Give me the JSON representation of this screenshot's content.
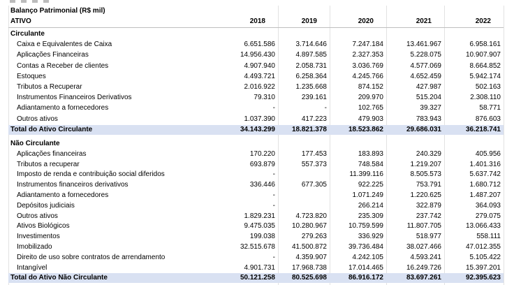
{
  "title": "Balanço Patrimonial (R$ mil)",
  "header": {
    "label": "ATIVO",
    "years": [
      "2018",
      "2019",
      "2020",
      "2021",
      "2022"
    ]
  },
  "sections": [
    {
      "heading": "Circulante",
      "rows": [
        {
          "label": "Caixa e Equivalentes de Caixa",
          "values": [
            "6.651.586",
            "3.714.646",
            "7.247.184",
            "13.461.967",
            "6.958.161"
          ]
        },
        {
          "label": "Aplicações Financeiras",
          "values": [
            "14.956.430",
            "4.897.585",
            "2.327.353",
            "5.228.075",
            "10.907.907"
          ]
        },
        {
          "label": "Contas a Receber de clientes",
          "values": [
            "4.907.940",
            "2.058.731",
            "3.036.769",
            "4.577.069",
            "8.664.852"
          ]
        },
        {
          "label": "Estoques",
          "values": [
            "4.493.721",
            "6.258.364",
            "4.245.766",
            "4.652.459",
            "5.942.174"
          ]
        },
        {
          "label": "Tributos a Recuperar",
          "values": [
            "2.016.922",
            "1.235.668",
            "874.152",
            "427.987",
            "502.163"
          ]
        },
        {
          "label": "Instrumentos Financeiros Derivativos",
          "values": [
            "79.310",
            "239.161",
            "209.970",
            "515.204",
            "2.308.110"
          ]
        },
        {
          "label": "Adiantamento a fornecedores",
          "values": [
            "-",
            "-",
            "102.765",
            "39.327",
            "58.771"
          ]
        },
        {
          "label": "Outros ativos",
          "values": [
            "1.037.390",
            "417.223",
            "479.903",
            "783.943",
            "876.603"
          ]
        }
      ],
      "total": {
        "label": "Total do Ativo Circulante",
        "values": [
          "34.143.299",
          "18.821.378",
          "18.523.862",
          "29.686.031",
          "36.218.741"
        ]
      }
    },
    {
      "heading": "Não Circulante",
      "rows": [
        {
          "label": "Aplicações financeiras",
          "values": [
            "170.220",
            "177.453",
            "183.893",
            "240.329",
            "405.956"
          ]
        },
        {
          "label": "Tributos a recuperar",
          "values": [
            "693.879",
            "557.373",
            "748.584",
            "1.219.207",
            "1.401.316"
          ]
        },
        {
          "label": "Imposto de renda e contribuição social diferidos",
          "values": [
            "-",
            "",
            "11.399.116",
            "8.505.573",
            "5.637.742"
          ]
        },
        {
          "label": "Instrumentos financeiros derivativos",
          "values": [
            "336.446",
            "677.305",
            "922.225",
            "753.791",
            "1.680.712"
          ]
        },
        {
          "label": "Adiantamento a fornecedores",
          "values": [
            "-",
            "",
            "1.071.249",
            "1.220.625",
            "1.487.207"
          ]
        },
        {
          "label": "Depósitos judiciais",
          "values": [
            "-",
            "",
            "266.214",
            "322.879",
            "364.093"
          ]
        },
        {
          "label": "Outros ativos",
          "values": [
            "1.829.231",
            "4.723.820",
            "235.309",
            "237.742",
            "279.075"
          ]
        },
        {
          "label": "Ativos Biológicos",
          "values": [
            "9.475.035",
            "10.280.967",
            "10.759.599",
            "11.807.705",
            "13.066.433"
          ]
        },
        {
          "label": "Investimentos",
          "values": [
            "199.038",
            "279.263",
            "336.929",
            "518.977",
            "558.111"
          ]
        },
        {
          "label": "Imobilizado",
          "values": [
            "32.515.678",
            "41.500.872",
            "39.736.484",
            "38.027.466",
            "47.012.355"
          ]
        },
        {
          "label": "Direito de uso sobre contratos de arrendamento",
          "values": [
            "-",
            "4.359.907",
            "4.242.105",
            "4.593.241",
            "5.105.422"
          ]
        },
        {
          "label": "Intangível",
          "values": [
            "4.901.731",
            "17.968.738",
            "17.014.465",
            "16.249.726",
            "15.397.201"
          ]
        }
      ],
      "total": {
        "label": "Total do Ativo Não Circulante",
        "values": [
          "50.121.258",
          "80.525.698",
          "86.916.172",
          "83.697.261",
          "92.395.623"
        ]
      }
    }
  ]
}
